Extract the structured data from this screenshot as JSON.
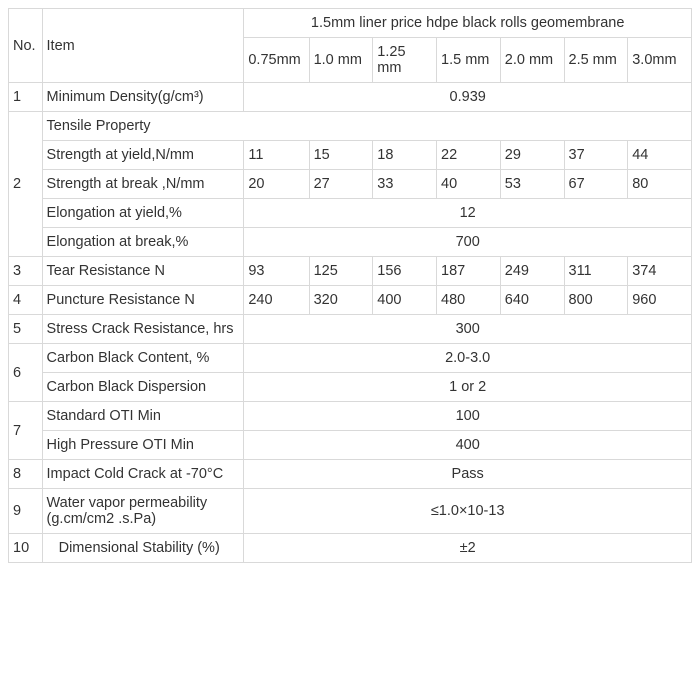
{
  "header": {
    "no": "No.",
    "item": "Item",
    "title": "1.5mm liner price hdpe black rolls geomembrane",
    "cols": [
      "0.75mm",
      "1.0 mm",
      "1.25 mm",
      "1.5 mm",
      "2.0 mm",
      "2.5 mm",
      "3.0mm"
    ]
  },
  "r1": {
    "no": "1",
    "item": "Minimum Density(g/cm³)",
    "val": "0.939"
  },
  "r2": {
    "no": "2",
    "tp": "Tensile Property",
    "sy": {
      "item": "Strength at yield,N/mm",
      "v": [
        "11",
        "15",
        "18",
        "22",
        "29",
        "37",
        "44"
      ]
    },
    "sb": {
      "item": "Strength at break ,N/mm",
      "v": [
        "20",
        "27",
        "33",
        "40",
        "53",
        "67",
        "80"
      ]
    },
    "ey": {
      "item": "Elongation at yield,%",
      "val": "12"
    },
    "eb": {
      "item": "Elongation at break,%",
      "val": "700"
    }
  },
  "r3": {
    "no": "3",
    "item": "Tear Resistance   N",
    "v": [
      "93",
      "125",
      "156",
      "187",
      "249",
      "311",
      "374"
    ]
  },
  "r4": {
    "no": "4",
    "item": "Puncture Resistance  N",
    "v": [
      "240",
      "320",
      "400",
      "480",
      "640",
      "800",
      "960"
    ]
  },
  "r5": {
    "no": "5",
    "item": "Stress Crack Resistance, hrs",
    "val": "300"
  },
  "r6": {
    "no": "6",
    "cbc": {
      "item": "Carbon Black Content, %",
      "val": "2.0-3.0"
    },
    "cbd": {
      "item": "Carbon Black Dispersion",
      "val": "1  or  2"
    }
  },
  "r7": {
    "no": "7",
    "soti": {
      "item": "Standard OTI  Min",
      "val": "100"
    },
    "hoti": {
      "item": "High Pressure OTI  Min",
      "val": "400"
    }
  },
  "r8": {
    "no": "8",
    "item": "Impact Cold Crack at -70°C",
    "val": "Pass"
  },
  "r9": {
    "no": "9",
    "item": "Water vapor permeability  (g.cm/cm2 .s.Pa)",
    "val": "≤1.0×10-13"
  },
  "r10": {
    "no": "10",
    "item": "   Dimensional Stability (%)",
    "val": "±2"
  },
  "style": {
    "border_color": "#d9d9d9",
    "text_color": "#333333",
    "background": "#ffffff",
    "fontsize": 14.5
  }
}
